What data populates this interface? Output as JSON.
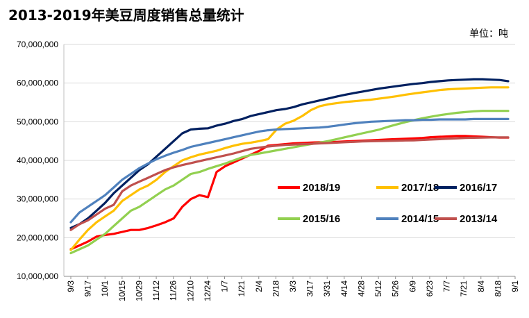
{
  "chart_data": {
    "type": "line",
    "title": "2013-2019年美豆周度销售总量统计",
    "unit_label": "单位：吨",
    "ylim": [
      10000000,
      70000000
    ],
    "yticks": [
      10000000,
      20000000,
      30000000,
      40000000,
      50000000,
      60000000,
      70000000
    ],
    "ytick_labels": [
      "10,000,000",
      "20,000,000",
      "30,000,000",
      "40,000,000",
      "50,000,000",
      "60,000,000",
      "70,000,000"
    ],
    "x_tick_labels": [
      "9/3",
      "9/17",
      "10/1",
      "10/15",
      "10/29",
      "11/12",
      "11/26",
      "12/10",
      "12/24",
      "1/7",
      "1/21",
      "2/4",
      "2/18",
      "3/3",
      "3/17",
      "3/31",
      "4/14",
      "4/28",
      "5/12",
      "5/26",
      "6/9",
      "6/23",
      "7/7",
      "7/21",
      "8/4",
      "8/18",
      "9/1"
    ],
    "grid": "horizontal",
    "legend_placement": "center-right",
    "series": [
      {
        "name": "2018/19",
        "color": "#ff0000",
        "values": [
          17000000,
          18000000,
          19000000,
          20300000,
          20700000,
          21000000,
          21500000,
          22000000,
          22000000,
          22500000,
          23200000,
          24000000,
          25000000,
          28000000,
          30000000,
          31000000,
          30500000,
          37000000,
          38500000,
          39500000,
          40500000,
          41500000,
          42500000,
          43800000,
          44000000,
          44200000,
          44400000,
          44500000,
          44600000,
          44700000,
          44700000,
          44800000,
          44900000,
          45000000,
          45100000,
          45200000,
          45300000,
          45400000,
          45500000,
          45600000,
          45700000,
          45800000,
          46000000,
          46100000,
          46200000,
          46300000,
          46300000,
          46200000,
          46100000,
          46000000,
          45900000,
          45900000
        ]
      },
      {
        "name": "2017/18",
        "color": "#ffc000",
        "values": [
          16800000,
          19500000,
          22000000,
          24000000,
          25500000,
          27000000,
          29500000,
          31000000,
          32500000,
          33500000,
          35000000,
          37000000,
          38500000,
          40000000,
          40800000,
          41500000,
          42000000,
          42500000,
          43200000,
          43800000,
          44300000,
          44600000,
          45000000,
          45500000,
          48000000,
          49500000,
          50300000,
          51500000,
          53000000,
          54000000,
          54500000,
          54800000,
          55100000,
          55300000,
          55500000,
          55700000,
          56000000,
          56300000,
          56600000,
          57000000,
          57300000,
          57600000,
          57900000,
          58200000,
          58400000,
          58500000,
          58600000,
          58700000,
          58800000,
          58900000,
          58900000,
          58900000
        ]
      },
      {
        "name": "2016/17",
        "color": "#002060",
        "values": [
          22500000,
          23500000,
          25000000,
          27000000,
          29000000,
          31500000,
          33500000,
          35500000,
          37500000,
          39000000,
          41000000,
          43000000,
          45000000,
          47000000,
          48000000,
          48200000,
          48300000,
          49000000,
          49500000,
          50200000,
          50700000,
          51500000,
          52000000,
          52500000,
          53000000,
          53300000,
          53800000,
          54500000,
          55000000,
          55500000,
          56000000,
          56500000,
          57000000,
          57400000,
          57800000,
          58200000,
          58600000,
          58900000,
          59200000,
          59500000,
          59800000,
          60000000,
          60300000,
          60500000,
          60700000,
          60800000,
          60900000,
          61000000,
          61000000,
          60900000,
          60800000,
          60500000
        ]
      },
      {
        "name": "2015/16",
        "color": "#92d050",
        "values": [
          16000000,
          17000000,
          18000000,
          19500000,
          21000000,
          23000000,
          25000000,
          27000000,
          28000000,
          29500000,
          31000000,
          32500000,
          33500000,
          35000000,
          36500000,
          37000000,
          37800000,
          38500000,
          39200000,
          40000000,
          40800000,
          41400000,
          41800000,
          42200000,
          42600000,
          43000000,
          43400000,
          43800000,
          44200000,
          44600000,
          45000000,
          45500000,
          46000000,
          46500000,
          47000000,
          47500000,
          48000000,
          48700000,
          49300000,
          49900000,
          50400000,
          50900000,
          51300000,
          51700000,
          52000000,
          52300000,
          52500000,
          52700000,
          52800000,
          52800000,
          52800000,
          52800000
        ]
      },
      {
        "name": "2014/15",
        "color": "#4f81bd",
        "values": [
          24000000,
          26500000,
          28000000,
          29500000,
          31000000,
          33000000,
          35000000,
          36500000,
          38000000,
          39200000,
          40300000,
          41200000,
          42000000,
          42700000,
          43500000,
          44000000,
          44500000,
          45000000,
          45500000,
          46000000,
          46500000,
          47000000,
          47500000,
          47800000,
          48000000,
          48100000,
          48200000,
          48300000,
          48400000,
          48500000,
          48700000,
          49000000,
          49300000,
          49600000,
          49800000,
          50000000,
          50100000,
          50200000,
          50300000,
          50400000,
          50400000,
          50500000,
          50500000,
          50600000,
          50600000,
          50600000,
          50600000,
          50700000,
          50700000,
          50700000,
          50700000,
          50700000
        ]
      },
      {
        "name": "2013/14",
        "color": "#c0504d",
        "values": [
          22000000,
          23500000,
          24500000,
          26000000,
          27500000,
          28500000,
          32000000,
          33500000,
          34500000,
          35500000,
          36500000,
          37500000,
          38200000,
          38800000,
          39300000,
          39800000,
          40300000,
          40800000,
          41300000,
          41800000,
          42400000,
          43000000,
          43300000,
          43600000,
          43800000,
          44000000,
          44100000,
          44200000,
          44300000,
          44400000,
          44500000,
          44600000,
          44700000,
          44800000,
          44900000,
          44950000,
          45000000,
          45050000,
          45100000,
          45150000,
          45200000,
          45300000,
          45400000,
          45500000,
          45600000,
          45700000,
          45800000,
          45850000,
          45900000,
          45950000,
          45950000,
          45950000
        ]
      }
    ]
  }
}
